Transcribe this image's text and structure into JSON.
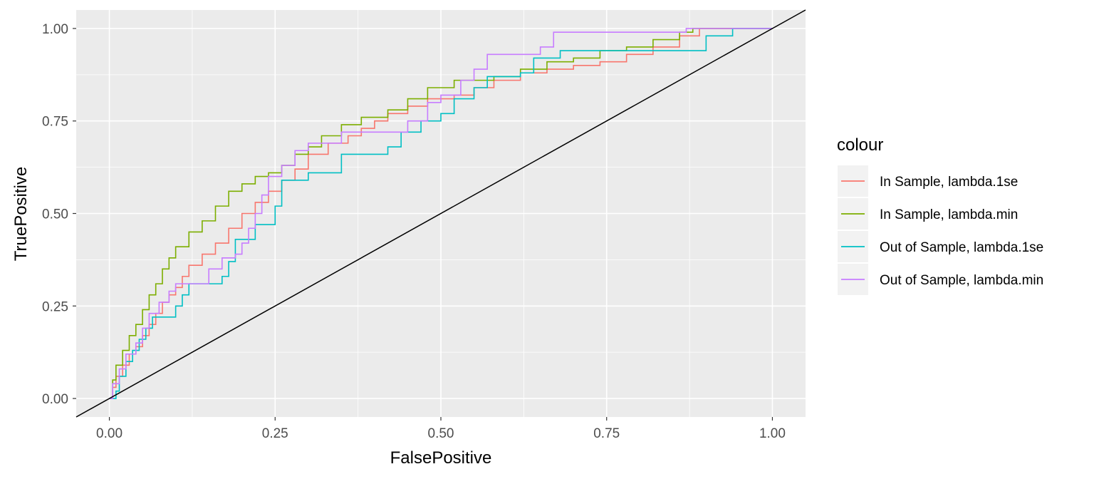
{
  "chart_data": {
    "type": "line",
    "title": "",
    "xlabel": "FalsePositive",
    "ylabel": "TruePositive",
    "xlim": [
      -0.05,
      1.05
    ],
    "ylim": [
      -0.05,
      1.05
    ],
    "x_ticks": [
      0.0,
      0.25,
      0.5,
      0.75,
      1.0
    ],
    "y_ticks": [
      0.0,
      0.25,
      0.5,
      0.75,
      1.0
    ],
    "x_tick_labels": [
      "0.00",
      "0.25",
      "0.50",
      "0.75",
      "1.00"
    ],
    "y_tick_labels": [
      "0.00",
      "0.25",
      "0.50",
      "0.75",
      "1.00"
    ],
    "panel_background": "#ebebeb",
    "grid": true,
    "legend": {
      "title": "colour",
      "position": "right"
    },
    "reference_line": {
      "slope": 1,
      "intercept": 0,
      "color": "#000000"
    },
    "series": [
      {
        "name": "In Sample, lambda.1se",
        "color": "#F8766D",
        "points": [
          [
            0.0,
            0.0
          ],
          [
            0.005,
            0.03
          ],
          [
            0.01,
            0.06
          ],
          [
            0.02,
            0.09
          ],
          [
            0.03,
            0.12
          ],
          [
            0.04,
            0.14
          ],
          [
            0.05,
            0.17
          ],
          [
            0.06,
            0.2
          ],
          [
            0.07,
            0.23
          ],
          [
            0.08,
            0.26
          ],
          [
            0.09,
            0.28
          ],
          [
            0.1,
            0.3
          ],
          [
            0.11,
            0.33
          ],
          [
            0.12,
            0.36
          ],
          [
            0.14,
            0.39
          ],
          [
            0.16,
            0.42
          ],
          [
            0.18,
            0.46
          ],
          [
            0.2,
            0.5
          ],
          [
            0.22,
            0.53
          ],
          [
            0.24,
            0.56
          ],
          [
            0.26,
            0.59
          ],
          [
            0.28,
            0.62
          ],
          [
            0.3,
            0.66
          ],
          [
            0.33,
            0.69
          ],
          [
            0.36,
            0.71
          ],
          [
            0.38,
            0.73
          ],
          [
            0.4,
            0.75
          ],
          [
            0.42,
            0.77
          ],
          [
            0.45,
            0.79
          ],
          [
            0.48,
            0.81
          ],
          [
            0.52,
            0.82
          ],
          [
            0.55,
            0.84
          ],
          [
            0.58,
            0.86
          ],
          [
            0.62,
            0.88
          ],
          [
            0.66,
            0.89
          ],
          [
            0.7,
            0.9
          ],
          [
            0.74,
            0.91
          ],
          [
            0.78,
            0.93
          ],
          [
            0.82,
            0.95
          ],
          [
            0.86,
            0.98
          ],
          [
            0.89,
            1.0
          ],
          [
            1.0,
            1.0
          ]
        ]
      },
      {
        "name": "In Sample, lambda.min",
        "color": "#7CAE00",
        "points": [
          [
            0.0,
            0.0
          ],
          [
            0.005,
            0.05
          ],
          [
            0.01,
            0.09
          ],
          [
            0.02,
            0.13
          ],
          [
            0.03,
            0.17
          ],
          [
            0.04,
            0.2
          ],
          [
            0.05,
            0.24
          ],
          [
            0.06,
            0.28
          ],
          [
            0.07,
            0.31
          ],
          [
            0.08,
            0.35
          ],
          [
            0.09,
            0.38
          ],
          [
            0.1,
            0.41
          ],
          [
            0.12,
            0.45
          ],
          [
            0.14,
            0.48
          ],
          [
            0.16,
            0.52
          ],
          [
            0.18,
            0.56
          ],
          [
            0.2,
            0.58
          ],
          [
            0.22,
            0.6
          ],
          [
            0.24,
            0.61
          ],
          [
            0.26,
            0.63
          ],
          [
            0.28,
            0.66
          ],
          [
            0.3,
            0.68
          ],
          [
            0.32,
            0.71
          ],
          [
            0.35,
            0.74
          ],
          [
            0.38,
            0.76
          ],
          [
            0.42,
            0.78
          ],
          [
            0.45,
            0.81
          ],
          [
            0.48,
            0.84
          ],
          [
            0.52,
            0.86
          ],
          [
            0.55,
            0.86
          ],
          [
            0.58,
            0.87
          ],
          [
            0.62,
            0.89
          ],
          [
            0.66,
            0.91
          ],
          [
            0.7,
            0.92
          ],
          [
            0.74,
            0.94
          ],
          [
            0.78,
            0.95
          ],
          [
            0.82,
            0.97
          ],
          [
            0.86,
            0.99
          ],
          [
            0.88,
            1.0
          ],
          [
            1.0,
            1.0
          ]
        ]
      },
      {
        "name": "Out of Sample, lambda.1se",
        "color": "#00BFC4",
        "points": [
          [
            0.0,
            0.0
          ],
          [
            0.01,
            0.02
          ],
          [
            0.015,
            0.06
          ],
          [
            0.025,
            0.1
          ],
          [
            0.035,
            0.13
          ],
          [
            0.045,
            0.16
          ],
          [
            0.055,
            0.19
          ],
          [
            0.065,
            0.22
          ],
          [
            0.08,
            0.22
          ],
          [
            0.1,
            0.25
          ],
          [
            0.11,
            0.28
          ],
          [
            0.12,
            0.31
          ],
          [
            0.15,
            0.31
          ],
          [
            0.17,
            0.33
          ],
          [
            0.18,
            0.37
          ],
          [
            0.19,
            0.43
          ],
          [
            0.21,
            0.43
          ],
          [
            0.22,
            0.47
          ],
          [
            0.24,
            0.47
          ],
          [
            0.25,
            0.52
          ],
          [
            0.26,
            0.59
          ],
          [
            0.3,
            0.61
          ],
          [
            0.33,
            0.61
          ],
          [
            0.35,
            0.66
          ],
          [
            0.38,
            0.66
          ],
          [
            0.42,
            0.68
          ],
          [
            0.44,
            0.72
          ],
          [
            0.46,
            0.72
          ],
          [
            0.47,
            0.75
          ],
          [
            0.5,
            0.77
          ],
          [
            0.52,
            0.81
          ],
          [
            0.55,
            0.84
          ],
          [
            0.57,
            0.87
          ],
          [
            0.62,
            0.88
          ],
          [
            0.64,
            0.92
          ],
          [
            0.68,
            0.94
          ],
          [
            0.7,
            0.94
          ],
          [
            0.75,
            0.94
          ],
          [
            0.82,
            0.94
          ],
          [
            0.9,
            0.98
          ],
          [
            0.94,
            1.0
          ],
          [
            1.0,
            1.0
          ]
        ]
      },
      {
        "name": "Out of Sample, lambda.min",
        "color": "#C77CFF",
        "points": [
          [
            0.0,
            0.0
          ],
          [
            0.005,
            0.04
          ],
          [
            0.015,
            0.08
          ],
          [
            0.025,
            0.12
          ],
          [
            0.04,
            0.15
          ],
          [
            0.05,
            0.19
          ],
          [
            0.06,
            0.23
          ],
          [
            0.075,
            0.26
          ],
          [
            0.09,
            0.29
          ],
          [
            0.1,
            0.31
          ],
          [
            0.14,
            0.31
          ],
          [
            0.15,
            0.35
          ],
          [
            0.17,
            0.38
          ],
          [
            0.19,
            0.39
          ],
          [
            0.2,
            0.42
          ],
          [
            0.21,
            0.46
          ],
          [
            0.22,
            0.5
          ],
          [
            0.23,
            0.55
          ],
          [
            0.24,
            0.6
          ],
          [
            0.26,
            0.63
          ],
          [
            0.28,
            0.67
          ],
          [
            0.3,
            0.69
          ],
          [
            0.35,
            0.72
          ],
          [
            0.4,
            0.72
          ],
          [
            0.45,
            0.75
          ],
          [
            0.48,
            0.8
          ],
          [
            0.5,
            0.82
          ],
          [
            0.53,
            0.86
          ],
          [
            0.55,
            0.89
          ],
          [
            0.57,
            0.93
          ],
          [
            0.62,
            0.93
          ],
          [
            0.65,
            0.95
          ],
          [
            0.67,
            0.99
          ],
          [
            0.7,
            0.99
          ],
          [
            0.78,
            0.99
          ],
          [
            0.87,
            1.0
          ],
          [
            0.91,
            1.0
          ],
          [
            1.0,
            1.0
          ]
        ]
      }
    ]
  }
}
